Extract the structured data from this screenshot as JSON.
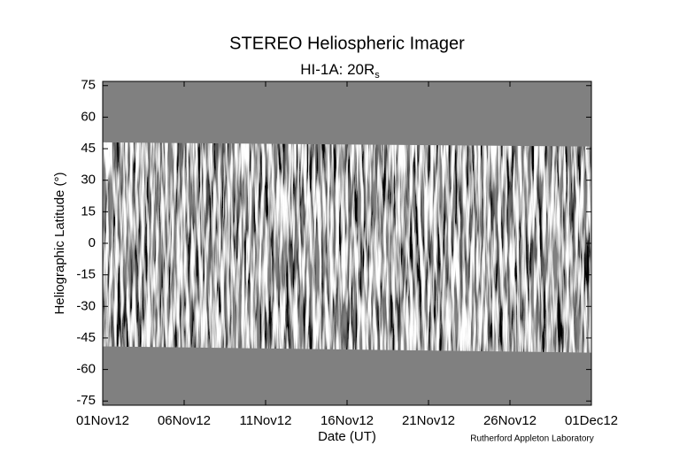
{
  "chart_data": {
    "type": "latitude-time-map",
    "title": "STEREO Heliospheric Imager",
    "subtitle": "HI-1A: 20R",
    "subtitle_subscript": "s",
    "y_label": "Heliographic Latitude (°)",
    "x_label": "Date (UT)",
    "credit": "Rutherford Appleton Laboratory",
    "xlim": [
      0,
      30
    ],
    "xticks": [
      {
        "value": 0,
        "label": "01Nov12"
      },
      {
        "value": 5,
        "label": "06Nov12"
      },
      {
        "value": 10,
        "label": "11Nov12"
      },
      {
        "value": 15,
        "label": "16Nov12"
      },
      {
        "value": 20,
        "label": "21Nov12"
      },
      {
        "value": 25,
        "label": "26Nov12"
      },
      {
        "value": 30,
        "label": "01Dec12"
      }
    ],
    "ylim": [
      -77,
      77
    ],
    "yticks": [
      75,
      60,
      45,
      30,
      15,
      0,
      -15,
      -30,
      -45,
      -60,
      -75
    ],
    "coverage": {
      "x": [
        0,
        30
      ],
      "upper": [
        48,
        46
      ],
      "lower": [
        -49,
        -52
      ]
    },
    "background_color": "#808080"
  }
}
